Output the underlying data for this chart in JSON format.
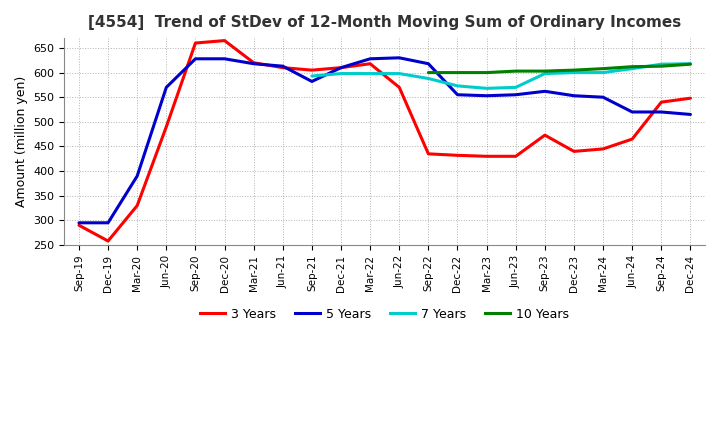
{
  "title": "[4554]  Trend of StDev of 12-Month Moving Sum of Ordinary Incomes",
  "ylabel": "Amount (million yen)",
  "ylim": [
    250,
    670
  ],
  "yticks": [
    250,
    300,
    350,
    400,
    450,
    500,
    550,
    600,
    650
  ],
  "background_color": "#ffffff",
  "plot_bg_color": "#ffffff",
  "grid_color": "#aaaaaa",
  "series": {
    "3 Years": {
      "color": "#ff0000",
      "data": [
        [
          "Sep-19",
          290
        ],
        [
          "Dec-19",
          258
        ],
        [
          "Mar-20",
          330
        ],
        [
          "Jun-20",
          490
        ],
        [
          "Sep-20",
          660
        ],
        [
          "Dec-20",
          665
        ],
        [
          "Mar-21",
          620
        ],
        [
          "Jun-21",
          610
        ],
        [
          "Sep-21",
          605
        ],
        [
          "Dec-21",
          610
        ],
        [
          "Mar-22",
          618
        ],
        [
          "Jun-22",
          570
        ],
        [
          "Sep-22",
          435
        ],
        [
          "Dec-22",
          432
        ],
        [
          "Mar-23",
          430
        ],
        [
          "Jun-23",
          430
        ],
        [
          "Sep-23",
          473
        ],
        [
          "Dec-23",
          440
        ],
        [
          "Mar-24",
          445
        ],
        [
          "Jun-24",
          465
        ],
        [
          "Sep-24",
          540
        ],
        [
          "Dec-24",
          548
        ]
      ]
    },
    "5 Years": {
      "color": "#0000cc",
      "data": [
        [
          "Sep-19",
          295
        ],
        [
          "Dec-19",
          295
        ],
        [
          "Mar-20",
          390
        ],
        [
          "Jun-20",
          570
        ],
        [
          "Sep-20",
          628
        ],
        [
          "Dec-20",
          628
        ],
        [
          "Mar-21",
          618
        ],
        [
          "Jun-21",
          613
        ],
        [
          "Sep-21",
          582
        ],
        [
          "Dec-21",
          610
        ],
        [
          "Mar-22",
          628
        ],
        [
          "Jun-22",
          630
        ],
        [
          "Sep-22",
          618
        ],
        [
          "Dec-22",
          555
        ],
        [
          "Mar-23",
          553
        ],
        [
          "Jun-23",
          555
        ],
        [
          "Sep-23",
          562
        ],
        [
          "Dec-23",
          553
        ],
        [
          "Mar-24",
          550
        ],
        [
          "Jun-24",
          520
        ],
        [
          "Sep-24",
          520
        ],
        [
          "Dec-24",
          515
        ]
      ]
    },
    "7 Years": {
      "color": "#00cccc",
      "data": [
        [
          "Sep-21",
          593
        ],
        [
          "Dec-21",
          598
        ],
        [
          "Mar-22",
          598
        ],
        [
          "Jun-22",
          598
        ],
        [
          "Sep-22",
          588
        ],
        [
          "Dec-22",
          573
        ],
        [
          "Mar-23",
          568
        ],
        [
          "Jun-23",
          570
        ],
        [
          "Sep-23",
          598
        ],
        [
          "Dec-23",
          600
        ],
        [
          "Mar-24",
          600
        ],
        [
          "Jun-24",
          608
        ],
        [
          "Sep-24",
          617
        ],
        [
          "Dec-24",
          618
        ]
      ]
    },
    "10 Years": {
      "color": "#008000",
      "data": [
        [
          "Sep-22",
          600
        ],
        [
          "Dec-22",
          600
        ],
        [
          "Mar-23",
          600
        ],
        [
          "Jun-23",
          603
        ],
        [
          "Sep-23",
          603
        ],
        [
          "Dec-23",
          605
        ],
        [
          "Mar-24",
          608
        ],
        [
          "Jun-24",
          612
        ],
        [
          "Sep-24",
          613
        ],
        [
          "Dec-24",
          617
        ]
      ]
    }
  },
  "x_labels": [
    "Sep-19",
    "Dec-19",
    "Mar-20",
    "Jun-20",
    "Sep-20",
    "Dec-20",
    "Mar-21",
    "Jun-21",
    "Sep-21",
    "Dec-21",
    "Mar-22",
    "Jun-22",
    "Sep-22",
    "Dec-22",
    "Mar-23",
    "Jun-23",
    "Sep-23",
    "Dec-23",
    "Mar-24",
    "Jun-24",
    "Sep-24",
    "Dec-24"
  ],
  "legend_order": [
    "3 Years",
    "5 Years",
    "7 Years",
    "10 Years"
  ]
}
